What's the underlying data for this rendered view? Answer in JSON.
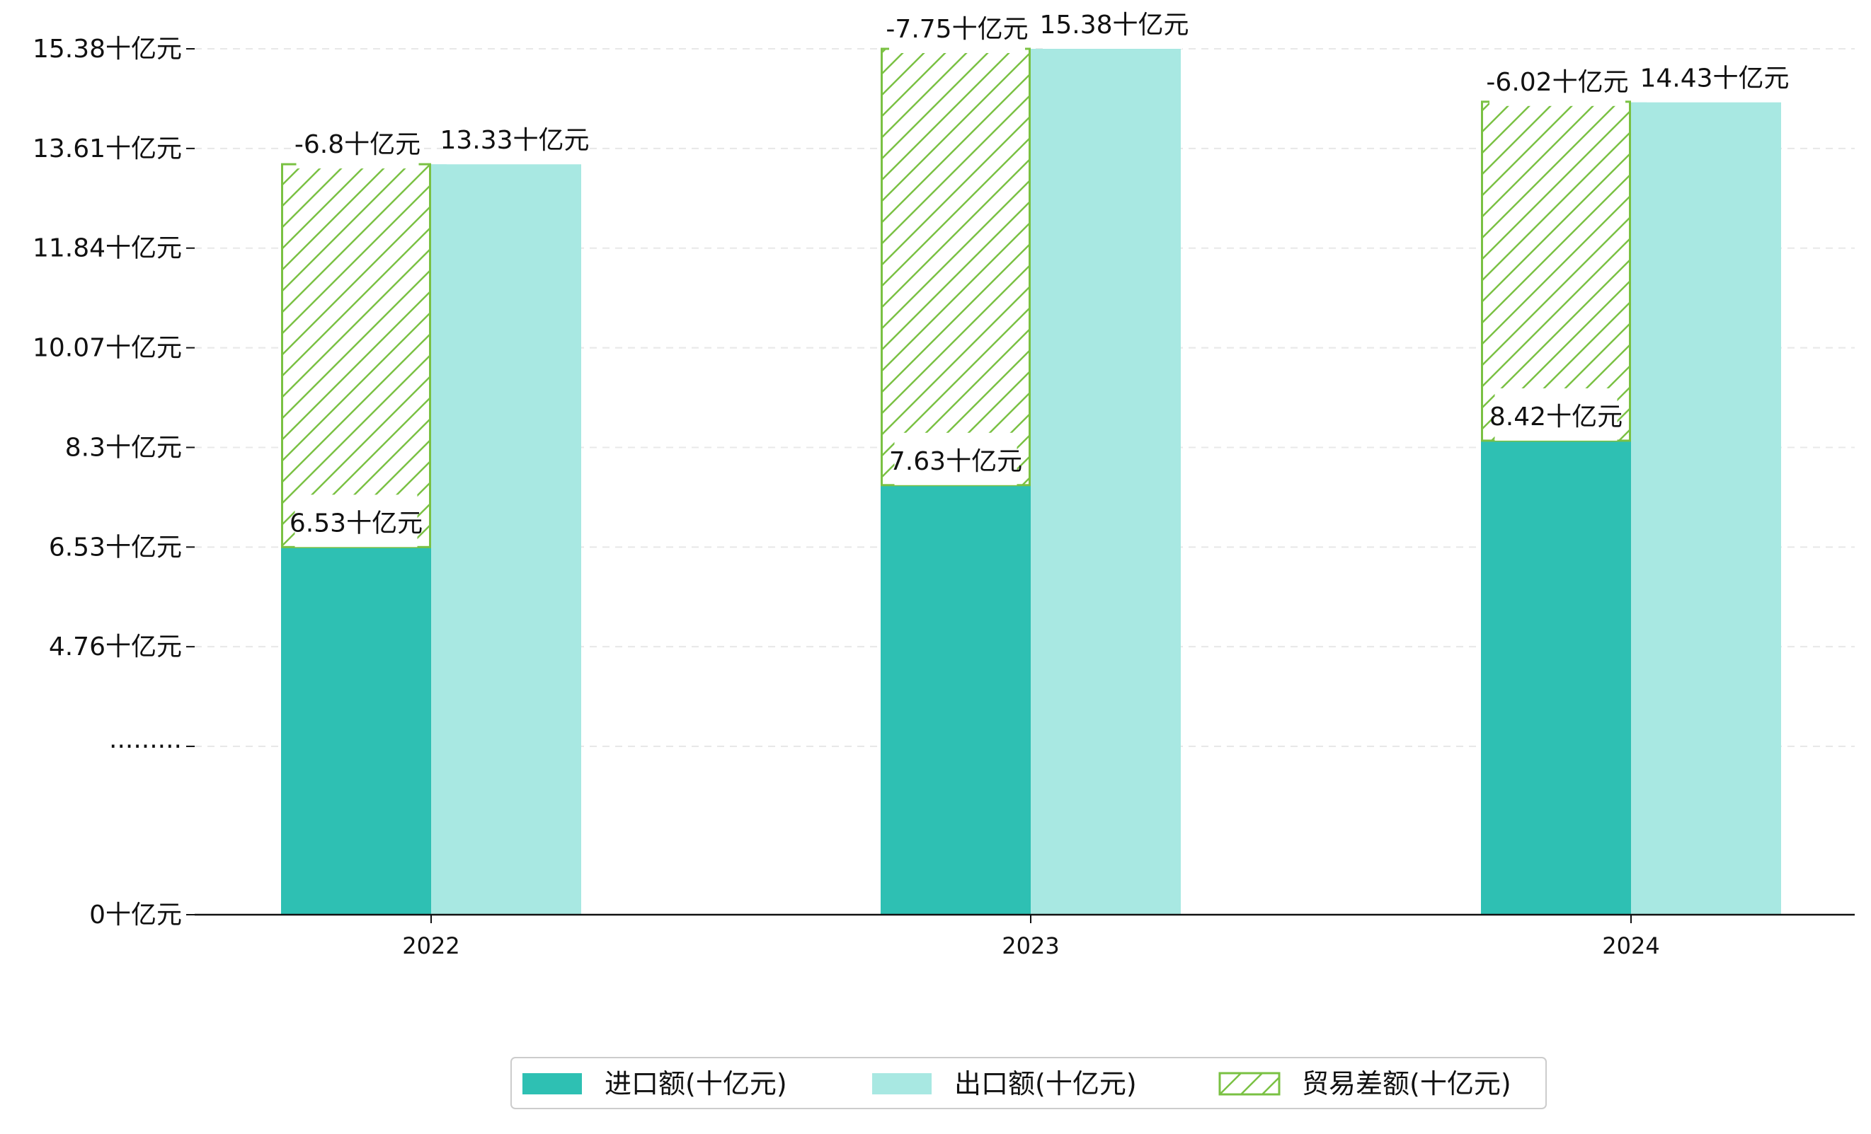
{
  "chart_data": {
    "type": "bar",
    "subtype": "grouped-stacked",
    "categories": [
      "2022",
      "2023",
      "2024"
    ],
    "series": [
      {
        "name": "进口额(十亿元)",
        "color": "#2ec0b3",
        "values": [
          6.53,
          7.63,
          8.42
        ],
        "labels": [
          "6.53十亿元",
          "7.63十亿元",
          "8.42十亿元"
        ]
      },
      {
        "name": "出口额(十亿元)",
        "color": "#a8e8e2",
        "values": [
          13.33,
          15.38,
          14.43
        ],
        "labels": [
          "13.33十亿元",
          "15.38十亿元",
          "14.43十亿元"
        ]
      },
      {
        "name": "贸易差额(十亿元)",
        "color": "#7ac143",
        "pattern": "diagonal-hatch",
        "stacked_on": "进口额(十亿元)",
        "values": [
          -6.8,
          -7.75,
          -6.02
        ],
        "labels": [
          "-6.8十亿元",
          "-7.75十亿元",
          "-6.02十亿元"
        ]
      }
    ],
    "y_axis": {
      "ticks": [
        0,
        2.99,
        4.76,
        6.53,
        8.3,
        10.07,
        11.84,
        13.61,
        15.38
      ],
      "tick_labels": [
        "0十亿元",
        "·········",
        "4.76十亿元",
        "6.53十亿元",
        "8.3十亿元",
        "10.07十亿元",
        "11.84十亿元",
        "13.61十亿元",
        "15.38十亿元"
      ],
      "ylim": [
        0,
        15.8
      ],
      "break": true
    },
    "grid": "horizontal-dashed",
    "legend_position": "bottom-center",
    "title": "",
    "xlabel": "",
    "ylabel": ""
  }
}
